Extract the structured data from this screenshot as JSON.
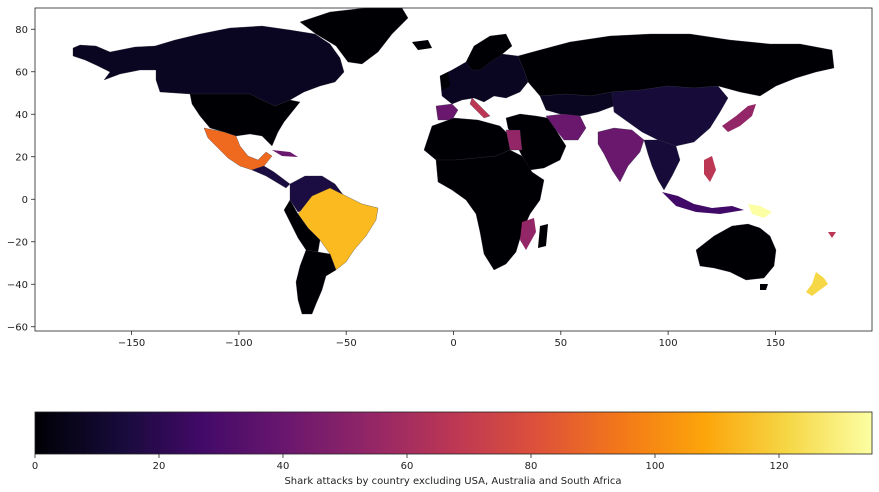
{
  "map": {
    "x_ticks": [
      "−150",
      "−100",
      "−50",
      "0",
      "50",
      "100",
      "150"
    ],
    "y_ticks": [
      "80",
      "60",
      "40",
      "20",
      "0",
      "−20",
      "−40",
      "−60"
    ],
    "xlim": [
      -195,
      195
    ],
    "ylim": [
      -62,
      90
    ],
    "colormap": "inferno"
  },
  "colorbar": {
    "ticks": [
      "0",
      "20",
      "40",
      "60",
      "80",
      "100",
      "120"
    ],
    "label": "Shark attacks by country excluding USA, Australia and South Africa",
    "range": [
      0,
      135
    ]
  },
  "chart_data": {
    "type": "choropleth",
    "value_range": [
      0,
      135
    ],
    "regions": [
      {
        "region": "Papua New Guinea",
        "value": 134
      },
      {
        "region": "New Zealand",
        "value": 128
      },
      {
        "region": "Brazil",
        "value": 108
      },
      {
        "region": "Mexico",
        "value": 88
      },
      {
        "region": "Italy",
        "value": 71
      },
      {
        "region": "Philippines",
        "value": 61
      },
      {
        "region": "Japan",
        "value": 58
      },
      {
        "region": "Fiji",
        "value": 60
      },
      {
        "region": "Egypt",
        "value": 48
      },
      {
        "region": "Mozambique",
        "value": 46
      },
      {
        "region": "Spain",
        "value": 44
      },
      {
        "region": "India",
        "value": 40
      },
      {
        "region": "Iran",
        "value": 38
      },
      {
        "region": "Indonesia",
        "value": 32
      },
      {
        "region": "Cuba",
        "value": 30
      }
    ]
  }
}
